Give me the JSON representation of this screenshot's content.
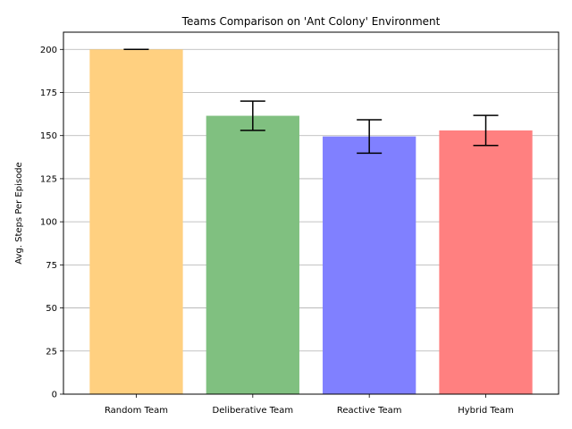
{
  "chart_data": {
    "type": "bar",
    "title": "Teams Comparison on 'Ant Colony' Environment",
    "xlabel": "",
    "ylabel": "Avg. Steps Per Episode",
    "ylim": [
      0,
      210
    ],
    "yticks": [
      0,
      25,
      50,
      75,
      100,
      125,
      150,
      175,
      200
    ],
    "grid": "horizontal",
    "categories": [
      "Random Team",
      "Deliberative Team",
      "Reactive Team",
      "Hybrid Team"
    ],
    "values": [
      200,
      161.5,
      149.5,
      153
    ],
    "errors": [
      0,
      8.5,
      9.7,
      8.7
    ],
    "colors": [
      "#ffd080",
      "#80c080",
      "#8080ff",
      "#ff8080"
    ]
  }
}
